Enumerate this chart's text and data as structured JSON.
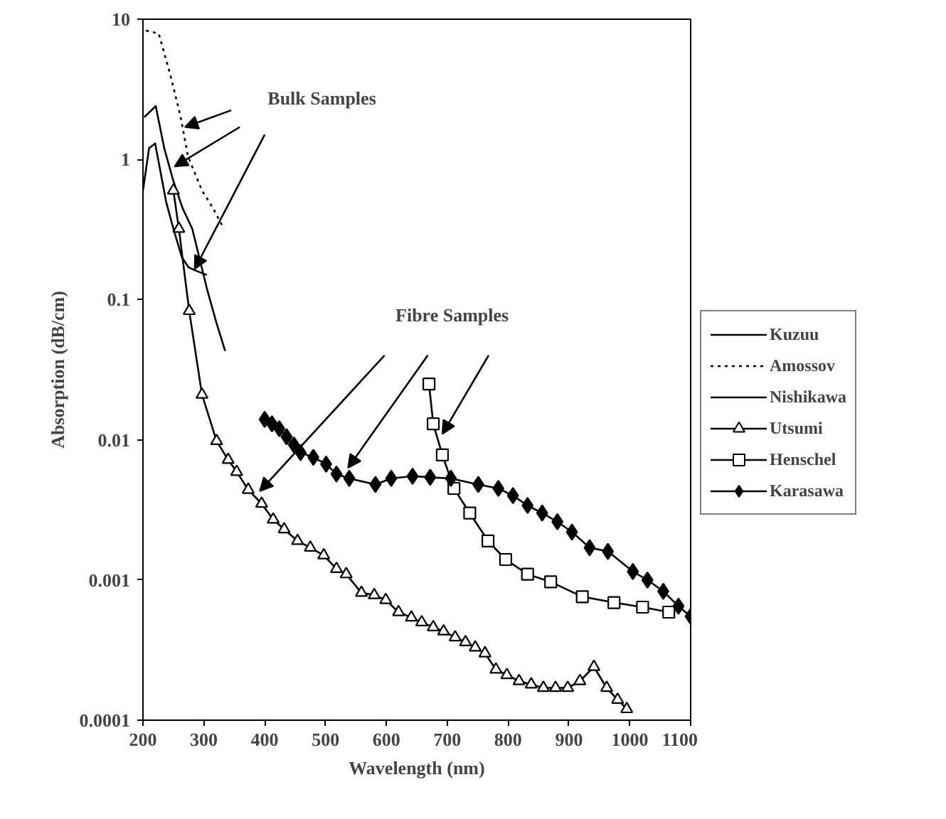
{
  "chart_data": {
    "type": "line",
    "xlabel": "Wavelength (nm)",
    "ylabel": "Absorption (dB/cm)",
    "log": "y",
    "xlim": [
      200,
      1100
    ],
    "xticks": [
      200,
      300,
      400,
      500,
      600,
      700,
      800,
      900,
      1000,
      1100
    ],
    "ylim": [
      0.0001,
      10
    ],
    "yticks": [
      0.0001,
      0.001,
      0.01,
      0.1,
      1,
      10
    ],
    "grid": false,
    "legend": "right",
    "annotations": [
      "Bulk Samples",
      "Fibre Samples"
    ],
    "series": [
      {
        "name": "Kuzuu",
        "color": "#000000",
        "marker": "none",
        "line_style": "solid",
        "x": [
          200,
          210,
          220,
          238,
          250,
          264,
          275,
          288,
          305
        ],
        "values": [
          0.6,
          1.2,
          1.3,
          0.5,
          0.32,
          0.2,
          0.17,
          0.16,
          0.15
        ]
      },
      {
        "name": "Amossov",
        "color": "#000000",
        "marker": "none",
        "line_style": "dotted",
        "x": [
          205,
          226,
          245,
          262,
          274,
          297,
          315,
          333
        ],
        "values": [
          8.3,
          7.9,
          4.0,
          2.0,
          1.05,
          0.6,
          0.45,
          0.32
        ]
      },
      {
        "name": "Nishikawa",
        "color": "#000000",
        "marker": "none",
        "line_style": "solid",
        "x": [
          202,
          221,
          235,
          250,
          265,
          281,
          305,
          320,
          335
        ],
        "values": [
          2.0,
          2.4,
          1.2,
          0.7,
          0.45,
          0.32,
          0.12,
          0.07,
          0.043
        ]
      },
      {
        "name": "Utsumi",
        "color": "#000000",
        "marker": "triangle",
        "line_style": "solid",
        "x": [
          250,
          259,
          276,
          297,
          321,
          340,
          354,
          373,
          395,
          414,
          432,
          454,
          475,
          497,
          518,
          534,
          559,
          580,
          599,
          620,
          641,
          658,
          677,
          694,
          713,
          730,
          746,
          762,
          780,
          798,
          818,
          838,
          858,
          878,
          898,
          918,
          941,
          962,
          980,
          995
        ],
        "values": [
          0.6,
          0.32,
          0.083,
          0.021,
          0.0098,
          0.0072,
          0.0059,
          0.0044,
          0.0035,
          0.0027,
          0.0023,
          0.0019,
          0.0017,
          0.0015,
          0.0012,
          0.0011,
          0.00081,
          0.00078,
          0.00072,
          0.00059,
          0.00054,
          0.0005,
          0.00046,
          0.00043,
          0.00039,
          0.00036,
          0.00033,
          0.0003,
          0.00023,
          0.00021,
          0.00019,
          0.00018,
          0.00017,
          0.00017,
          0.00017,
          0.00019,
          0.00024,
          0.00017,
          0.00014,
          0.00012
        ]
      },
      {
        "name": "Henschel",
        "color": "#000000",
        "marker": "square",
        "line_style": "solid",
        "x": [
          670,
          677,
          692,
          711,
          737,
          767,
          796,
          832,
          870,
          922,
          974,
          1021,
          1064
        ],
        "values": [
          0.025,
          0.013,
          0.0078,
          0.0045,
          0.003,
          0.0019,
          0.0014,
          0.0011,
          0.00097,
          0.00076,
          0.00069,
          0.00064,
          0.00059
        ]
      },
      {
        "name": "Karasawa",
        "color": "#000000",
        "marker": "diamond",
        "line_style": "solid",
        "x": [
          400,
          412,
          424,
          436,
          448,
          459,
          480,
          501,
          518,
          539,
          582,
          608,
          643,
          672,
          706,
          751,
          784,
          808,
          832,
          856,
          881,
          905,
          934,
          964,
          1005,
          1029,
          1055,
          1080,
          1100
        ],
        "values": [
          0.014,
          0.013,
          0.012,
          0.0105,
          0.0092,
          0.0081,
          0.0075,
          0.0067,
          0.0057,
          0.0053,
          0.0048,
          0.0053,
          0.0055,
          0.0054,
          0.0053,
          0.0048,
          0.0045,
          0.004,
          0.0034,
          0.003,
          0.0026,
          0.0022,
          0.0017,
          0.0016,
          0.00115,
          0.001,
          0.00083,
          0.00065,
          0.00055
        ]
      }
    ]
  }
}
